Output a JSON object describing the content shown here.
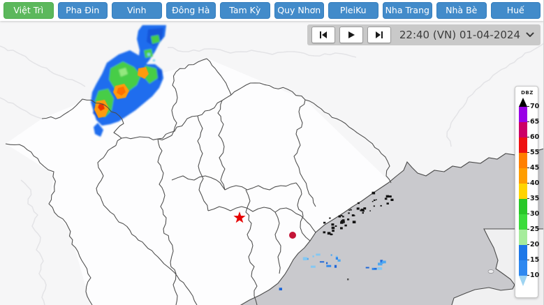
{
  "tabs": [
    {
      "id": "viet-tri",
      "label": "Việt Trì",
      "active": true
    },
    {
      "id": "pha-din",
      "label": "Pha Đin",
      "active": false
    },
    {
      "id": "vinh",
      "label": "Vinh",
      "active": false
    },
    {
      "id": "dong-ha",
      "label": "Đông Hà",
      "active": false
    },
    {
      "id": "tam-ky",
      "label": "Tam Kỳ",
      "active": false
    },
    {
      "id": "quy-nhon",
      "label": "Quy Nhơn",
      "active": false
    },
    {
      "id": "pleiku",
      "label": "PleiKu",
      "active": false
    },
    {
      "id": "nha-trang",
      "label": "Nha Trang",
      "active": false
    },
    {
      "id": "nha-be",
      "label": "Nhà Bè",
      "active": false
    },
    {
      "id": "hue",
      "label": "Huế",
      "active": false
    }
  ],
  "playback": {
    "timestamp": "22:40 (VN) 01-04-2024",
    "buttons": [
      "skip-to-start",
      "play",
      "skip-to-end"
    ],
    "dropdown_icon": "chevron-down"
  },
  "legend": {
    "title": "DBZ",
    "ticks": [
      "70",
      "65",
      "60",
      "55",
      "45",
      "40",
      "35",
      "30",
      "25",
      "20",
      "15",
      "10"
    ],
    "segment_colors": [
      "#9900E6",
      "#CC0066",
      "#EE1111",
      "#FF7F00",
      "#FF9D00",
      "#FFD400",
      "#28C828",
      "#3BDC3B",
      "#A6EC9C",
      "#1E78E8",
      "#2E88F0"
    ],
    "overflow_marker_color": "#000000",
    "underflow_marker_color": "#9ED4F2"
  },
  "map": {
    "land_color": "#F6F6F7",
    "vietnam_land_color": "#FDFDFE",
    "sea_color": "#C9C9CD",
    "hainan_land_color": "#F0F0F1",
    "province_border_color": "#4A4A4A",
    "neighbor_border_color": "#E3E3E6",
    "island_color": "#141414",
    "station_marker": {
      "shape": "star",
      "color": "#E60000"
    },
    "city_marker": {
      "shape": "dot",
      "color": "#C41437"
    },
    "radar_palette": {
      "blue": "#1668EE",
      "dark_blue": "#0B50D8",
      "green": "#3FCC3F",
      "light_green": "#8FE87A",
      "orange": "#FF9A10",
      "deep_orange": "#FF7000",
      "red": "#EE3300",
      "cyan": "#7AD4F0",
      "sea_echo_blues": [
        "#4FA8F0",
        "#2E86EC",
        "#85C8F2",
        "#1E66D8"
      ]
    }
  },
  "colors": {
    "tab_active_bg": "#5CB85C",
    "tab_active_border": "#4CAE4C",
    "tab_bg": "#428BCA",
    "tab_border": "#357EBD",
    "control_bar_bg": "#C9C9C9",
    "control_button_bg": "#FFFFFF",
    "timestamp_color": "#3C3C3C"
  }
}
